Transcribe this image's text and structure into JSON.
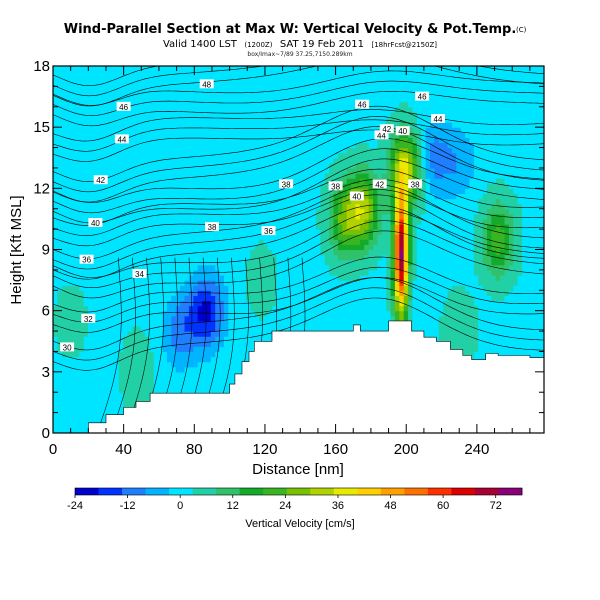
{
  "chart_data": {
    "type": "heatmap",
    "title": "Wind-Parallel Section at Max W: Vertical Velocity & Pot.Temp.",
    "title_badge": "(C)",
    "subtitle": {
      "valid": "Valid 1400 LST",
      "valid_small": "(1200Z)",
      "date": "SAT 19 Feb 2011",
      "run": "[18hrFcst@2150Z]"
    },
    "subtitle_line2": "box/Imax~7/89 37.25,7150.289km",
    "xlabel": "Distance [nm]",
    "ylabel": "Height [Kft MSL]",
    "xlim": [
      0,
      278
    ],
    "ylim": [
      0,
      18
    ],
    "x_ticks": [
      0,
      40,
      80,
      120,
      160,
      200,
      240
    ],
    "y_ticks": [
      0,
      3,
      6,
      9,
      12,
      15,
      18
    ],
    "colorbar": {
      "title": "Vertical Velocity [cm/s]",
      "min": -24,
      "max": 78,
      "ticks": [
        -24,
        -12,
        0,
        12,
        24,
        36,
        48,
        60,
        72
      ],
      "colors": [
        "#0000cc",
        "#0033ff",
        "#1e7fff",
        "#00b4ff",
        "#00e5ff",
        "#22d0a6",
        "#30c26a",
        "#14aa2a",
        "#38b520",
        "#78c000",
        "#b0d200",
        "#e8ea00",
        "#ffd000",
        "#ffa000",
        "#ff7000",
        "#ff3000",
        "#dd0000",
        "#a80032",
        "#8a0078"
      ]
    },
    "w_centers": [
      {
        "x": 87,
        "z": 6.0,
        "value": -21
      },
      {
        "x": 72,
        "z": 5.0,
        "value": -12
      },
      {
        "x": 215,
        "z": 13.5,
        "value": -12
      },
      {
        "x": 230,
        "z": 13.3,
        "value": -8
      },
      {
        "x": 165,
        "z": 10.5,
        "value": 22
      },
      {
        "x": 176,
        "z": 11.0,
        "value": 28
      },
      {
        "x": 197,
        "z": 8.8,
        "value": 72
      },
      {
        "x": 200,
        "z": 13.0,
        "value": 32
      },
      {
        "x": 252,
        "z": 9.5,
        "value": 20
      },
      {
        "x": 48,
        "z": 3.0,
        "value": 6
      },
      {
        "x": 10,
        "z": 5.5,
        "value": 4
      },
      {
        "x": 118,
        "z": 7.5,
        "value": 4
      },
      {
        "x": 230,
        "z": 5.0,
        "value": 6
      }
    ],
    "terrain": {
      "x": [
        0,
        20,
        20,
        30,
        30,
        40,
        40,
        47,
        47,
        55,
        55,
        100,
        100,
        103,
        103,
        107,
        107,
        111,
        111,
        114,
        114,
        124,
        124,
        127,
        127,
        130,
        130,
        170,
        170,
        174,
        174,
        190,
        190,
        203,
        203,
        210,
        210,
        217,
        217,
        225,
        225,
        232,
        232,
        237,
        237,
        245,
        245,
        252,
        252,
        270,
        270,
        278,
        278,
        0
      ],
      "z": [
        0,
        0,
        0.5,
        0.5,
        0.9,
        0.9,
        1.25,
        1.25,
        1.55,
        1.55,
        1.95,
        1.95,
        2.4,
        2.4,
        2.9,
        2.9,
        3.5,
        3.5,
        4.0,
        4.0,
        4.5,
        4.5,
        5.0,
        5.0,
        5.0,
        5.0,
        5.0,
        5.0,
        5.3,
        5.3,
        5.0,
        5.0,
        5.5,
        5.5,
        5.0,
        5.0,
        4.7,
        4.7,
        4.5,
        4.5,
        4.1,
        4.1,
        3.8,
        3.8,
        3.6,
        3.6,
        3.9,
        3.9,
        3.8,
        3.8,
        3.7,
        3.7,
        0,
        0
      ]
    },
    "contour_labels": [
      {
        "x": 87,
        "z": 17.1,
        "value": "48"
      },
      {
        "x": 40,
        "z": 16.0,
        "value": "46"
      },
      {
        "x": 175,
        "z": 16.1,
        "value": "46"
      },
      {
        "x": 209,
        "z": 16.5,
        "value": "46"
      },
      {
        "x": 39,
        "z": 14.4,
        "value": "44"
      },
      {
        "x": 186,
        "z": 14.6,
        "value": "44"
      },
      {
        "x": 218,
        "z": 15.4,
        "value": "44"
      },
      {
        "x": 185,
        "z": 12.2,
        "value": "42"
      },
      {
        "x": 27,
        "z": 12.4,
        "value": "42"
      },
      {
        "x": 189,
        "z": 14.9,
        "value": "42"
      },
      {
        "x": 172,
        "z": 11.6,
        "value": "40"
      },
      {
        "x": 24,
        "z": 10.3,
        "value": "40"
      },
      {
        "x": 198,
        "z": 14.8,
        "value": "40"
      },
      {
        "x": 132,
        "z": 12.2,
        "value": "38"
      },
      {
        "x": 160,
        "z": 12.1,
        "value": "38"
      },
      {
        "x": 90,
        "z": 10.1,
        "value": "38"
      },
      {
        "x": 205,
        "z": 12.2,
        "value": "38"
      },
      {
        "x": 122,
        "z": 9.9,
        "value": "36"
      },
      {
        "x": 19,
        "z": 8.5,
        "value": "36"
      },
      {
        "x": 49,
        "z": 7.8,
        "value": "34"
      },
      {
        "x": 20,
        "z": 5.6,
        "value": "32"
      },
      {
        "x": 8,
        "z": 4.2,
        "value": "30"
      }
    ]
  }
}
